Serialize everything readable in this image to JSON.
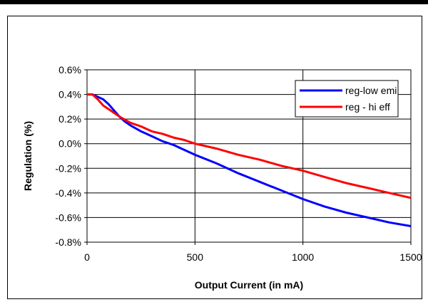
{
  "chart_data": {
    "type": "line",
    "title": "",
    "xlabel": "Output Current (in mA)",
    "ylabel": "Regulation (%)",
    "xlim": [
      0,
      1500
    ],
    "ylim": [
      -0.8,
      0.6
    ],
    "x_ticks": [
      0,
      500,
      1000,
      1500
    ],
    "x_tick_labels": [
      "0",
      "500",
      "1000",
      "1500"
    ],
    "y_ticks": [
      -0.8,
      -0.6,
      -0.4,
      -0.2,
      0.0,
      0.2,
      0.4,
      0.6
    ],
    "y_tick_labels": [
      "-0.8%",
      "-0.6%",
      "-0.4%",
      "-0.2%",
      "0.0%",
      "0.2%",
      "0.4%",
      "0.6%"
    ],
    "grid": true,
    "legend_position": "top-right",
    "series": [
      {
        "name": "reg-low emi",
        "color": "#0000ff",
        "x": [
          0,
          25,
          50,
          75,
          100,
          125,
          150,
          175,
          200,
          250,
          300,
          350,
          400,
          450,
          500,
          600,
          700,
          800,
          900,
          1000,
          1100,
          1200,
          1300,
          1400,
          1500
        ],
        "y": [
          0.4,
          0.4,
          0.38,
          0.36,
          0.32,
          0.27,
          0.22,
          0.18,
          0.15,
          0.1,
          0.06,
          0.02,
          -0.01,
          -0.05,
          -0.09,
          -0.16,
          -0.24,
          -0.31,
          -0.38,
          -0.45,
          -0.51,
          -0.56,
          -0.6,
          -0.64,
          -0.67
        ]
      },
      {
        "name": "reg - hi eff",
        "color": "#ff0000",
        "x": [
          0,
          25,
          50,
          75,
          100,
          150,
          200,
          250,
          300,
          350,
          400,
          450,
          500,
          600,
          700,
          800,
          900,
          1000,
          1100,
          1200,
          1300,
          1400,
          1500
        ],
        "y": [
          0.4,
          0.4,
          0.36,
          0.31,
          0.28,
          0.22,
          0.17,
          0.14,
          0.1,
          0.08,
          0.05,
          0.03,
          0.0,
          -0.04,
          -0.09,
          -0.13,
          -0.18,
          -0.22,
          -0.27,
          -0.32,
          -0.36,
          -0.4,
          -0.44
        ]
      }
    ]
  }
}
